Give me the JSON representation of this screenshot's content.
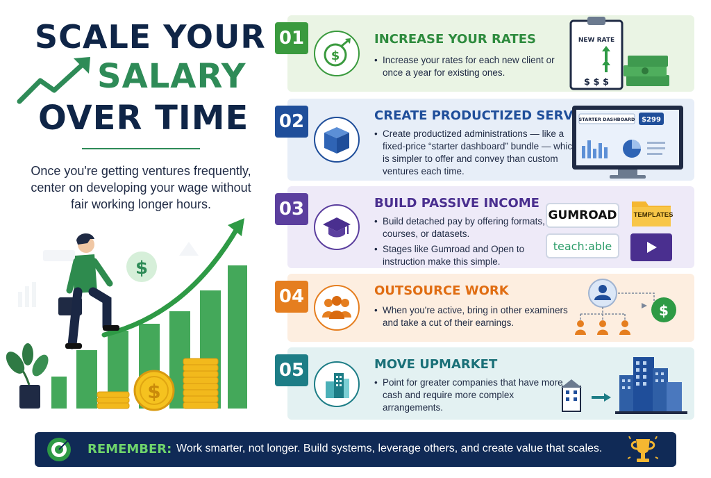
{
  "header": {
    "title_line1": "SCALE YOUR",
    "title_line2": "SALARY",
    "title_line3": "OVER TIME",
    "subtitle": "Once you're getting ventures frequently, center on developing your wage without fair working longer hours."
  },
  "colors": {
    "navy": "#0f2547",
    "green": "#2e8b57",
    "step1": "#3a9a3e",
    "step2": "#1f4e9a",
    "step3": "#5b3f9e",
    "step4": "#e57e1f",
    "step5": "#1d7d86"
  },
  "steps": [
    {
      "number": "01",
      "title": "INCREASE YOUR RATES",
      "icon": "money-growth-icon",
      "bullets": [
        "Increase your rates for each new client or once a year for existing ones."
      ],
      "art": {
        "clipboard_label": "NEW RATE",
        "price_marks": "$ $ $"
      }
    },
    {
      "number": "02",
      "title": "CREATE PRODUCTIZED SERVICES",
      "icon": "package-box-icon",
      "bullets": [
        "Create productized administrations — like a fixed-price “starter dashboard” bundle — which is simpler to offer and convey than custom ventures each time."
      ],
      "art": {
        "screen_label": "STARTER DASHBOARD",
        "price": "$299"
      }
    },
    {
      "number": "03",
      "title": "BUILD PASSIVE INCOME",
      "icon": "graduation-cap-icon",
      "bullets": [
        "Build detached pay by offering formats, courses, or datasets.",
        "Stages like Gumroad and Open to instruction make this simple."
      ],
      "art": {
        "brand1": "GUMROAD",
        "brand2": "teach:able",
        "folder_label": "TEMPLATES"
      }
    },
    {
      "number": "04",
      "title": "OUTSOURCE WORK",
      "icon": "team-people-icon",
      "bullets": [
        "When you're active, bring in other examiners and take a cut of their earnings."
      ]
    },
    {
      "number": "05",
      "title": "MOVE UPMARKET",
      "icon": "buildings-icon",
      "bullets": [
        "Point for greater companies that have more cash and require more complex arrangements."
      ]
    }
  ],
  "footer": {
    "label": "REMEMBER:",
    "text": "Work smarter, not longer. Build systems, leverage others, and create value that scales."
  }
}
